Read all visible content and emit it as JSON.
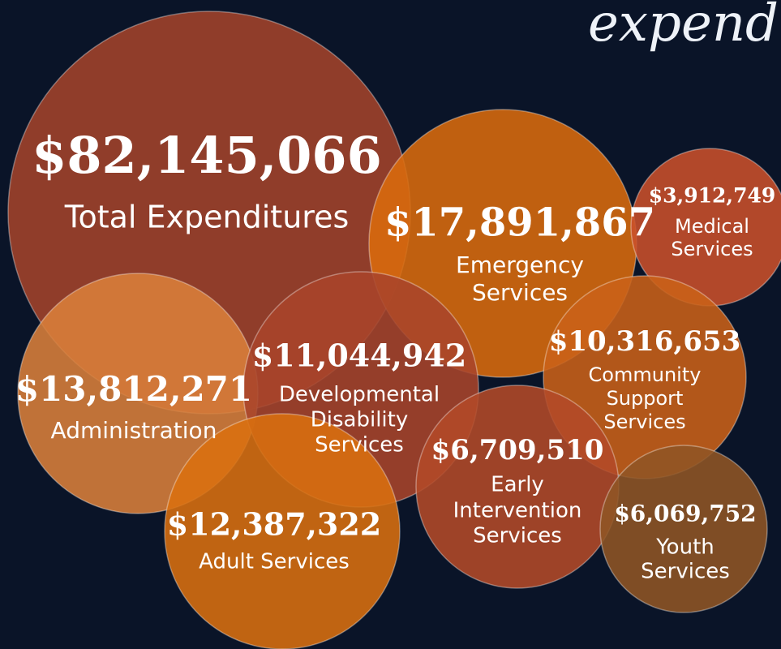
{
  "title": "expend",
  "bubbles": [
    {
      "amount": "$82,145,066",
      "label": [
        "Total Expenditures"
      ]
    },
    {
      "amount": "$17,891,867",
      "label": [
        "Emergency",
        "Services"
      ]
    },
    {
      "amount": "$3,912,749",
      "label": [
        "Medical",
        "Services"
      ]
    },
    {
      "amount": "$13,812,271",
      "label": [
        "Administration"
      ]
    },
    {
      "amount": "$11,044,942",
      "label": [
        "Developmental",
        "Disability",
        "Services"
      ]
    },
    {
      "amount": "$10,316,653",
      "label": [
        "Community",
        "Support",
        "Services"
      ]
    },
    {
      "amount": "$12,387,322",
      "label": [
        "Adult Services"
      ]
    },
    {
      "amount": "$6,709,510",
      "label": [
        "Early",
        "Intervention",
        "Services"
      ]
    },
    {
      "amount": "$6,069,752",
      "label": [
        "Youth",
        "Services"
      ]
    }
  ]
}
